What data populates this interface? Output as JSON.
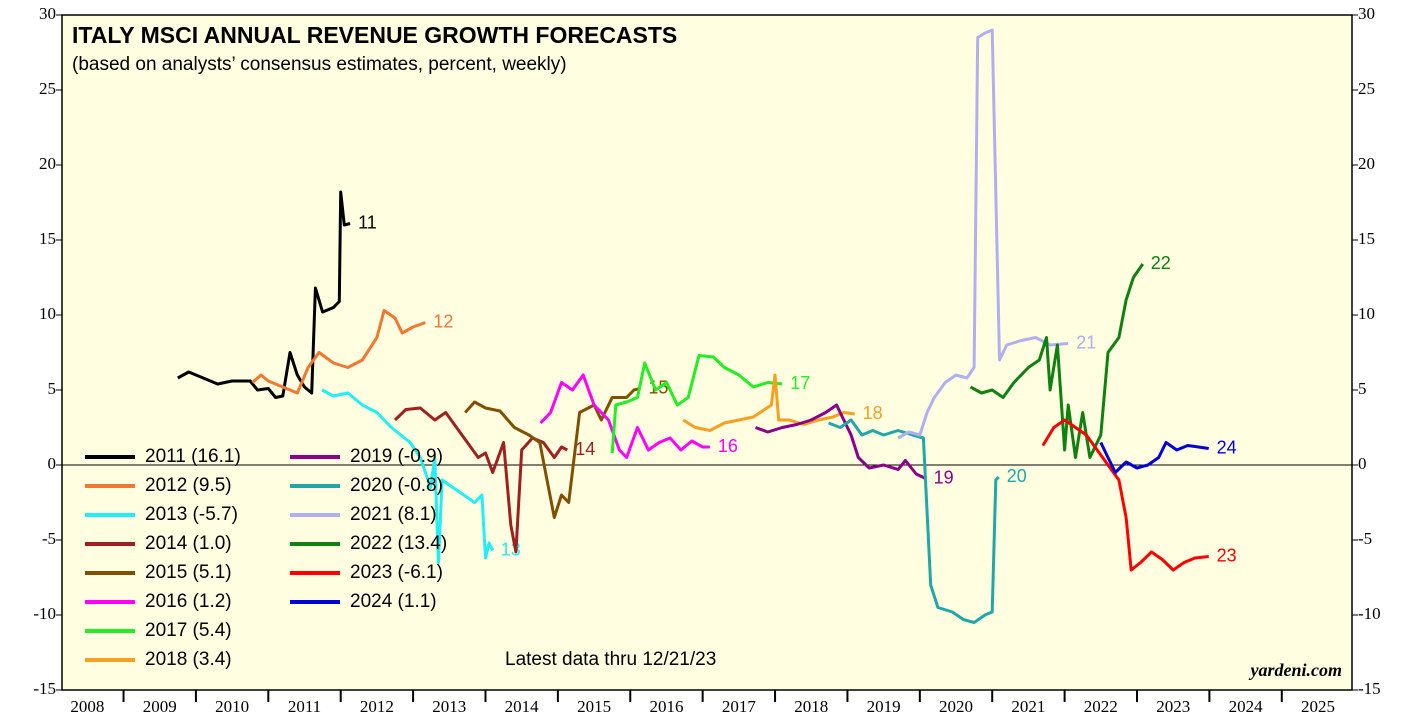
{
  "chart_data": {
    "type": "line",
    "title": "ITALY MSCI ANNUAL REVENUE GROWTH FORECASTS",
    "subtitle": "(based on analysts’ consensus estimates, percent, weekly)",
    "annotations": [
      "Latest data thru 12/21/23",
      "yardeni.com"
    ],
    "xlim": [
      2008.15,
      2025.97
    ],
    "xticks": [
      2008,
      2009,
      2010,
      2011,
      2012,
      2013,
      2014,
      2015,
      2016,
      2017,
      2018,
      2019,
      2020,
      2021,
      2022,
      2023,
      2024,
      2025
    ],
    "ylim": [
      -15,
      30
    ],
    "yticks": [
      -15,
      -10,
      -5,
      0,
      5,
      10,
      15,
      20,
      25,
      30
    ],
    "series": [
      {
        "name": "2011 (16.1)",
        "label": "11",
        "color": "#000000",
        "x": [
          2009.75,
          2009.9,
          2010.1,
          2010.3,
          2010.5,
          2010.75,
          2010.85,
          2011.0,
          2011.1,
          2011.2,
          2011.3,
          2011.4,
          2011.5,
          2011.6,
          2011.65,
          2011.75,
          2011.9,
          2011.98,
          2012.0,
          2012.05,
          2012.13
        ],
        "values": [
          5.8,
          6.2,
          5.8,
          5.4,
          5.6,
          5.6,
          5.0,
          5.1,
          4.5,
          4.6,
          7.5,
          6.0,
          5.2,
          4.8,
          11.8,
          10.2,
          10.5,
          10.9,
          18.2,
          16.0,
          16.1
        ]
      },
      {
        "name": "2012 (9.5)",
        "label": "12",
        "color": "#f07830",
        "x": [
          2010.78,
          2010.9,
          2011.0,
          2011.2,
          2011.4,
          2011.55,
          2011.7,
          2011.9,
          2012.1,
          2012.3,
          2012.5,
          2012.6,
          2012.75,
          2012.85,
          2013.0,
          2013.17
        ],
        "values": [
          5.5,
          6.0,
          5.6,
          5.2,
          4.8,
          6.5,
          7.5,
          6.8,
          6.5,
          7.0,
          8.5,
          10.3,
          9.8,
          8.8,
          9.2,
          9.5
        ]
      },
      {
        "name": "2013 (-5.7)",
        "label": "13",
        "color": "#22eef5",
        "x": [
          2011.74,
          2011.9,
          2012.1,
          2012.3,
          2012.5,
          2012.7,
          2012.96,
          2013.1,
          2013.24,
          2013.3,
          2013.35,
          2013.4,
          2013.55,
          2013.7,
          2013.85,
          2013.95,
          2014.0,
          2014.05,
          2014.1
        ],
        "values": [
          5.0,
          4.6,
          4.8,
          4.0,
          3.5,
          2.5,
          1.5,
          0.5,
          -1.5,
          0.5,
          -6.5,
          -1.0,
          -1.5,
          -2.0,
          -2.5,
          -2.0,
          -6.2,
          -5.2,
          -5.7
        ]
      },
      {
        "name": "2014 (1.0)",
        "label": "14",
        "color": "#a02020",
        "x": [
          2012.75,
          2012.9,
          2013.1,
          2013.3,
          2013.45,
          2013.6,
          2013.75,
          2013.9,
          2014.0,
          2014.1,
          2014.25,
          2014.35,
          2014.42,
          2014.5,
          2014.65,
          2014.8,
          2014.95,
          2015.05,
          2015.13
        ],
        "values": [
          3.0,
          3.7,
          3.8,
          3.0,
          3.5,
          2.5,
          1.5,
          0.5,
          0.8,
          -0.5,
          1.5,
          -4.0,
          -5.8,
          1.0,
          1.8,
          1.5,
          0.5,
          1.2,
          1.0
        ]
      },
      {
        "name": "2015 (5.1)",
        "label": "15",
        "color": "#805000",
        "x": [
          2013.72,
          2013.85,
          2014.0,
          2014.2,
          2014.4,
          2014.6,
          2014.75,
          2014.85,
          2014.95,
          2015.05,
          2015.15,
          2015.3,
          2015.5,
          2015.6,
          2015.75,
          2015.95,
          2016.05,
          2016.14
        ],
        "values": [
          3.5,
          4.2,
          3.8,
          3.6,
          2.5,
          2.0,
          1.5,
          -1.0,
          -3.5,
          -2.0,
          -2.5,
          3.5,
          4.0,
          3.0,
          4.5,
          4.5,
          5.0,
          5.1
        ]
      },
      {
        "name": "2016 (1.2)",
        "label": "16",
        "color": "#ff00ff",
        "x": [
          2014.76,
          2014.9,
          2015.05,
          2015.2,
          2015.35,
          2015.5,
          2015.7,
          2015.85,
          2015.95,
          2016.1,
          2016.25,
          2016.4,
          2016.55,
          2016.7,
          2016.85,
          2017.0,
          2017.1
        ],
        "values": [
          2.8,
          3.5,
          5.5,
          5.0,
          6.0,
          4.0,
          3.0,
          1.0,
          0.5,
          2.5,
          1.0,
          1.5,
          1.8,
          1.0,
          1.6,
          1.2,
          1.2
        ]
      },
      {
        "name": "2017 (5.4)",
        "label": "17",
        "color": "#22ee22",
        "x": [
          2015.75,
          2015.8,
          2015.95,
          2016.1,
          2016.2,
          2016.35,
          2016.5,
          2016.65,
          2016.8,
          2016.95,
          2017.15,
          2017.3,
          2017.5,
          2017.7,
          2017.9,
          2018.1
        ],
        "values": [
          0.8,
          4.0,
          4.2,
          4.5,
          6.8,
          5.0,
          5.5,
          4.0,
          4.5,
          7.3,
          7.2,
          6.5,
          6.0,
          5.2,
          5.5,
          5.4
        ]
      },
      {
        "name": "2018 (3.4)",
        "label": "18",
        "color": "#f5a020",
        "x": [
          2016.73,
          2016.9,
          2017.1,
          2017.3,
          2017.5,
          2017.7,
          2017.95,
          2018.0,
          2018.05,
          2018.2,
          2018.4,
          2018.6,
          2018.8,
          2018.95,
          2019.1
        ],
        "values": [
          3.0,
          2.5,
          2.3,
          2.8,
          3.0,
          3.2,
          4.0,
          6.0,
          3.0,
          3.0,
          2.7,
          3.0,
          3.2,
          3.5,
          3.4
        ]
      },
      {
        "name": "2019 (-0.9)",
        "label": "19",
        "color": "#8b008b",
        "x": [
          2017.73,
          2017.9,
          2018.1,
          2018.3,
          2018.5,
          2018.7,
          2018.85,
          2018.95,
          2019.05,
          2019.15,
          2019.3,
          2019.5,
          2019.7,
          2019.8,
          2019.95,
          2020.08
        ],
        "values": [
          2.5,
          2.2,
          2.5,
          2.7,
          3.0,
          3.5,
          4.0,
          3.0,
          2.0,
          0.5,
          -0.2,
          0.0,
          -0.3,
          0.3,
          -0.6,
          -0.9
        ]
      },
      {
        "name": "2020 (-0.8)",
        "label": "20",
        "color": "#20a8a8",
        "x": [
          2018.74,
          2018.9,
          2019.05,
          2019.2,
          2019.35,
          2019.5,
          2019.7,
          2019.9,
          2020.05,
          2020.15,
          2020.25,
          2020.45,
          2020.6,
          2020.75,
          2020.9,
          2021.0,
          2021.05,
          2021.09
        ],
        "values": [
          2.8,
          2.5,
          3.0,
          2.0,
          2.3,
          2.0,
          2.3,
          2.0,
          1.8,
          -8.0,
          -9.5,
          -9.8,
          -10.3,
          -10.5,
          -10.0,
          -9.8,
          -1.0,
          -0.8
        ]
      },
      {
        "name": "2021 (8.1)",
        "label": "21",
        "color": "#b0b0f0",
        "x": [
          2019.7,
          2019.85,
          2020.0,
          2020.1,
          2020.2,
          2020.35,
          2020.5,
          2020.65,
          2020.75,
          2020.8,
          2020.9,
          2021.0,
          2021.1,
          2021.2,
          2021.4,
          2021.6,
          2021.8,
          2022.05
        ],
        "values": [
          1.8,
          2.2,
          2.0,
          3.5,
          4.5,
          5.5,
          6.0,
          5.8,
          6.5,
          28.5,
          28.8,
          29.0,
          7.0,
          8.0,
          8.3,
          8.5,
          8.0,
          8.1
        ]
      },
      {
        "name": "2022 (13.4)",
        "label": "22",
        "color": "#108010",
        "x": [
          2020.7,
          2020.85,
          2021.0,
          2021.15,
          2021.3,
          2021.5,
          2021.65,
          2021.75,
          2021.8,
          2021.9,
          2022.0,
          2022.05,
          2022.15,
          2022.25,
          2022.35,
          2022.5,
          2022.6,
          2022.75,
          2022.85,
          2022.95,
          2023.08
        ],
        "values": [
          5.2,
          4.8,
          5.0,
          4.5,
          5.5,
          6.5,
          7.0,
          8.5,
          5.0,
          8.0,
          1.0,
          4.0,
          0.5,
          3.5,
          0.5,
          2.0,
          7.5,
          8.5,
          11.0,
          12.5,
          13.4
        ]
      },
      {
        "name": "2023 (-6.1)",
        "label": "23",
        "color": "#ff0000",
        "x": [
          2021.7,
          2021.85,
          2022.0,
          2022.15,
          2022.3,
          2022.45,
          2022.6,
          2022.75,
          2022.85,
          2022.92,
          2023.05,
          2023.2,
          2023.35,
          2023.5,
          2023.65,
          2023.8,
          2023.99
        ],
        "values": [
          1.3,
          2.5,
          3.0,
          2.5,
          2.0,
          1.0,
          0.0,
          -1.0,
          -3.5,
          -7.0,
          -6.5,
          -5.8,
          -6.3,
          -7.0,
          -6.5,
          -6.2,
          -6.1
        ]
      },
      {
        "name": "2024 (1.1)",
        "label": "24",
        "color": "#0000dd",
        "x": [
          2022.5,
          2022.6,
          2022.7,
          2022.85,
          2023.0,
          2023.15,
          2023.3,
          2023.4,
          2023.55,
          2023.7,
          2023.85,
          2023.99
        ],
        "values": [
          1.5,
          0.5,
          -0.5,
          0.2,
          -0.2,
          0.0,
          0.5,
          1.5,
          1.0,
          1.3,
          1.2,
          1.1
        ]
      }
    ]
  }
}
